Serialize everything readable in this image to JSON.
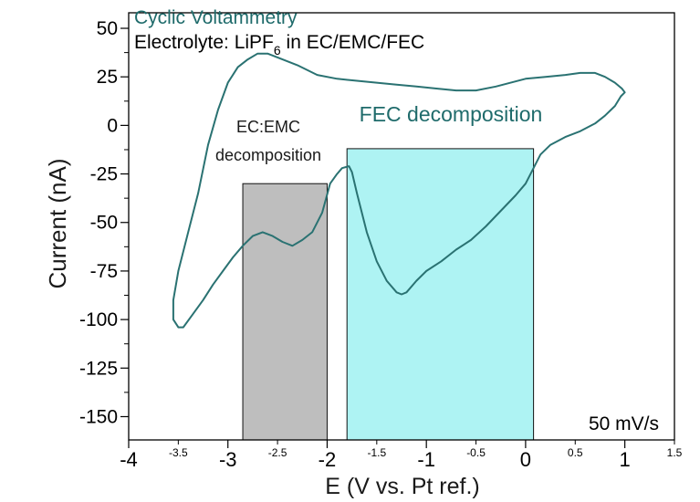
{
  "chart_data": {
    "type": "line",
    "title": "Cyclic Voltammetry",
    "subtitle_prefix": "Electrolyte: LiPF",
    "subtitle_subscript": "6",
    "subtitle_suffix": " in EC/EMC/FEC",
    "xlabel": "E (V vs. Pt ref.)",
    "ylabel": "Current (nA)",
    "xlim": [
      -4,
      1.5
    ],
    "ylim": [
      -162,
      58
    ],
    "x_major_ticks": [
      {
        "value": -4,
        "label": "-4"
      },
      {
        "value": -3,
        "label": "-3"
      },
      {
        "value": -2,
        "label": "-2"
      },
      {
        "value": -1,
        "label": "-1"
      },
      {
        "value": 0,
        "label": "0"
      },
      {
        "value": 1,
        "label": "1"
      }
    ],
    "x_minor_ticks": [
      {
        "value": -3.5,
        "label": "-3.5"
      },
      {
        "value": -2.5,
        "label": "-2.5"
      },
      {
        "value": -1.5,
        "label": "-1.5"
      },
      {
        "value": -0.5,
        "label": "-0.5"
      },
      {
        "value": 0.5,
        "label": "0.5"
      },
      {
        "value": 1.5,
        "label": "1.5"
      }
    ],
    "y_ticks": [
      {
        "value": 50,
        "label": "50"
      },
      {
        "value": 25,
        "label": "25"
      },
      {
        "value": 0,
        "label": "0"
      },
      {
        "value": -25,
        "label": "-25"
      },
      {
        "value": -50,
        "label": "-50"
      },
      {
        "value": -75,
        "label": "-75"
      },
      {
        "value": -100,
        "label": "-100"
      },
      {
        "value": -125,
        "label": "-125"
      },
      {
        "value": -150,
        "label": "-150"
      }
    ],
    "regions": [
      {
        "label_lines": [
          "EC:EMC",
          "decomposition"
        ],
        "x": [
          -2.85,
          -2.0
        ],
        "y": [
          -163,
          -30
        ],
        "color": "#bebebe",
        "label_color": "#1a1a1a"
      },
      {
        "label_lines": [
          "FEC decomposition"
        ],
        "x": [
          -1.8,
          0.08
        ],
        "y": [
          -163,
          -12
        ],
        "color": "#aef3f3",
        "label_color": "#1f6b6b"
      }
    ],
    "scan_rate": "50 mV/s",
    "line_color": "#2a7272",
    "grid": false,
    "series": [
      {
        "points": [
          [
            1.0,
            17
          ],
          [
            0.96,
            15
          ],
          [
            0.9,
            10
          ],
          [
            0.8,
            5
          ],
          [
            0.7,
            1
          ],
          [
            0.55,
            -3
          ],
          [
            0.4,
            -6
          ],
          [
            0.25,
            -10
          ],
          [
            0.15,
            -15
          ],
          [
            0.08,
            -22
          ],
          [
            0.0,
            -30
          ],
          [
            -0.1,
            -36
          ],
          [
            -0.25,
            -44
          ],
          [
            -0.4,
            -52
          ],
          [
            -0.55,
            -59
          ],
          [
            -0.7,
            -64
          ],
          [
            -0.85,
            -70
          ],
          [
            -1.0,
            -75
          ],
          [
            -1.1,
            -80
          ],
          [
            -1.2,
            -86
          ],
          [
            -1.25,
            -87
          ],
          [
            -1.3,
            -86
          ],
          [
            -1.4,
            -80
          ],
          [
            -1.5,
            -70
          ],
          [
            -1.6,
            -55
          ],
          [
            -1.7,
            -35
          ],
          [
            -1.75,
            -24
          ],
          [
            -1.78,
            -21
          ],
          [
            -1.85,
            -22
          ],
          [
            -1.9,
            -25
          ],
          [
            -1.97,
            -30
          ],
          [
            -2.05,
            -45
          ],
          [
            -2.15,
            -55
          ],
          [
            -2.25,
            -59
          ],
          [
            -2.35,
            -62
          ],
          [
            -2.45,
            -60
          ],
          [
            -2.55,
            -57
          ],
          [
            -2.65,
            -55
          ],
          [
            -2.75,
            -57
          ],
          [
            -2.85,
            -62
          ],
          [
            -2.95,
            -68
          ],
          [
            -3.05,
            -75
          ],
          [
            -3.15,
            -82
          ],
          [
            -3.25,
            -90
          ],
          [
            -3.35,
            -97
          ],
          [
            -3.45,
            -104
          ],
          [
            -3.5,
            -104
          ],
          [
            -3.55,
            -100
          ],
          [
            -3.55,
            -90
          ],
          [
            -3.5,
            -75
          ],
          [
            -3.4,
            -55
          ],
          [
            -3.3,
            -35
          ],
          [
            -3.2,
            -10
          ],
          [
            -3.1,
            8
          ],
          [
            -3.0,
            22
          ],
          [
            -2.9,
            30
          ],
          [
            -2.8,
            34
          ],
          [
            -2.7,
            37
          ],
          [
            -2.6,
            37
          ],
          [
            -2.5,
            35
          ],
          [
            -2.3,
            31
          ],
          [
            -2.1,
            26
          ],
          [
            -1.9,
            24
          ],
          [
            -1.7,
            23
          ],
          [
            -1.5,
            22
          ],
          [
            -1.3,
            21
          ],
          [
            -1.1,
            20
          ],
          [
            -0.9,
            19
          ],
          [
            -0.7,
            18
          ],
          [
            -0.5,
            18
          ],
          [
            -0.3,
            20
          ],
          [
            0.0,
            24
          ],
          [
            0.2,
            25
          ],
          [
            0.4,
            26
          ],
          [
            0.55,
            27
          ],
          [
            0.7,
            27
          ],
          [
            0.8,
            25
          ],
          [
            0.9,
            22
          ],
          [
            0.97,
            19
          ],
          [
            1.0,
            17
          ]
        ]
      }
    ]
  }
}
